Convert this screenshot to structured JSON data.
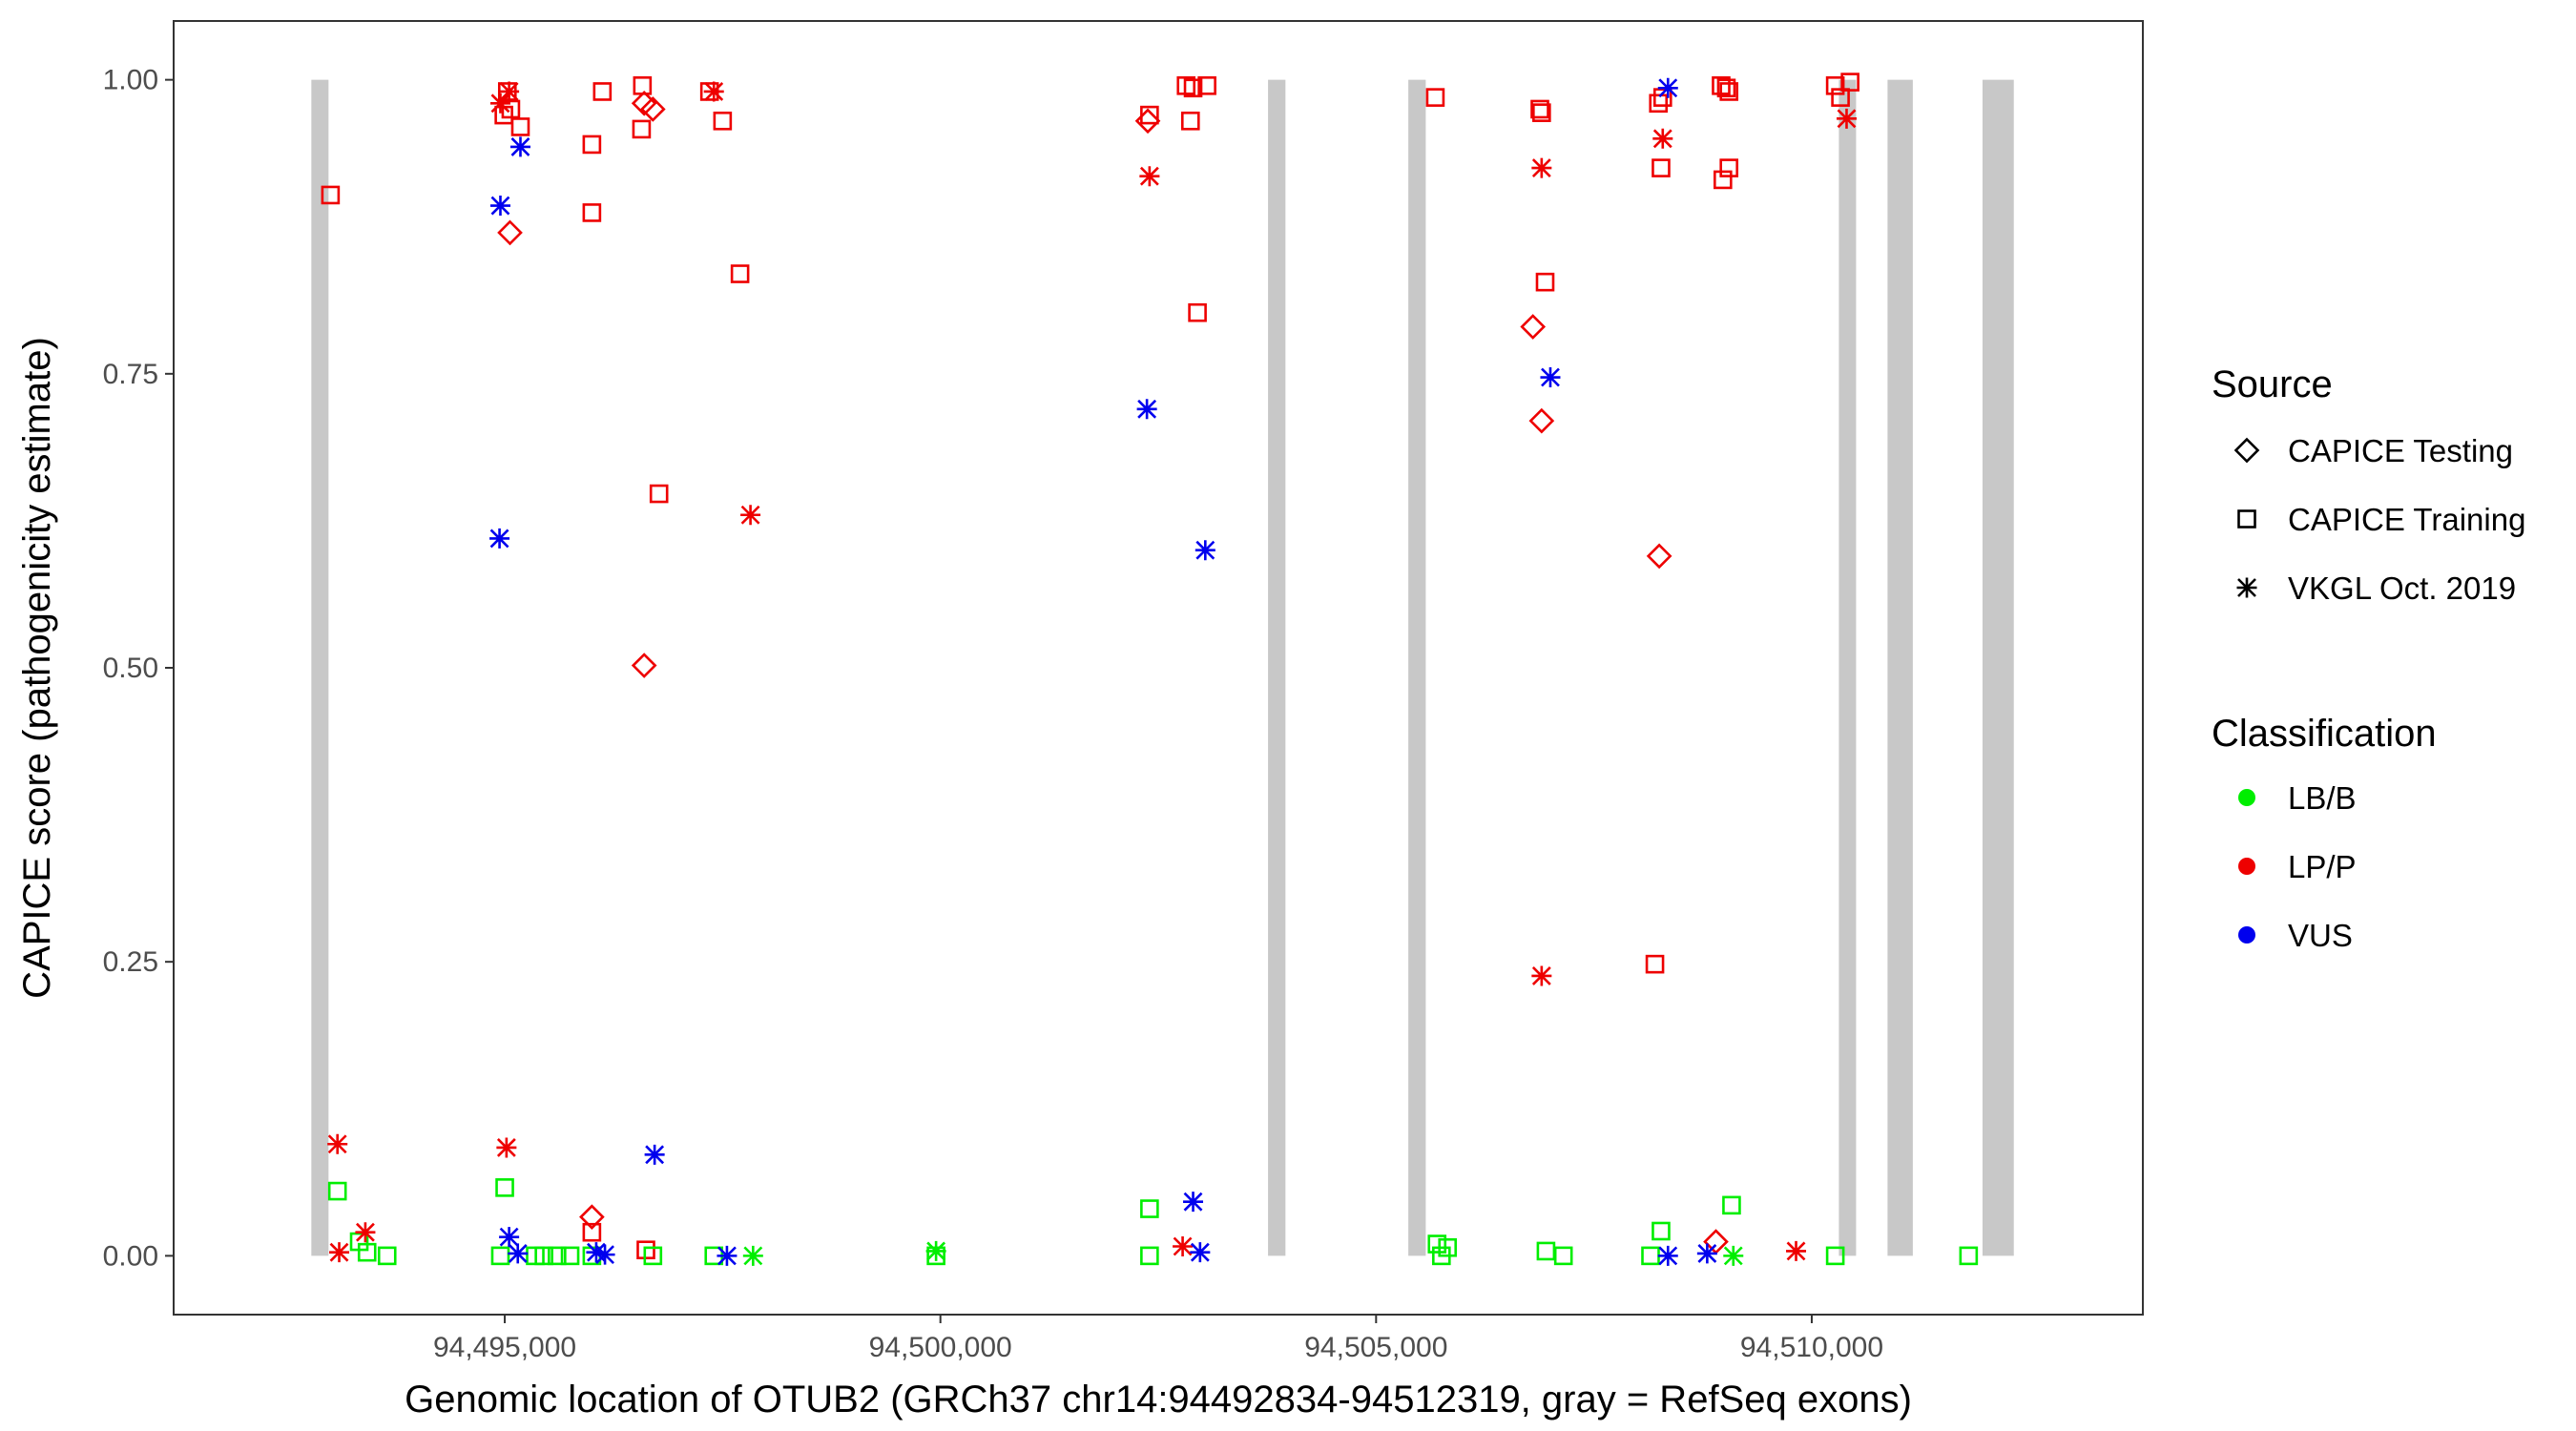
{
  "chart_data": {
    "type": "scatter",
    "title": "",
    "xlabel": "Genomic location of OTUB2 (GRCh37 chr14:94492834-94512319, gray = RefSeq exons)",
    "ylabel": "CAPICE score (pathogenicity estimate)",
    "xlim": [
      94491200,
      94513800
    ],
    "ylim": [
      -0.05,
      1.05
    ],
    "x_ticks": [
      94495000,
      94500000,
      94505000,
      94510000
    ],
    "x_tick_labels": [
      "94,495,000",
      "94,500,000",
      "94,505,000",
      "94,510,000"
    ],
    "y_ticks": [
      0,
      0.25,
      0.5,
      0.75,
      1
    ],
    "y_tick_labels": [
      "0.00",
      "0.25",
      "0.50",
      "0.75",
      "1.00"
    ],
    "grid": false,
    "exons": [
      [
        94492834,
        94492924
      ],
      [
        94503760,
        94503960
      ],
      [
        94505370,
        94505570
      ],
      [
        94510320,
        94510500
      ],
      [
        94510870,
        94511160
      ],
      [
        94511960,
        94512319
      ]
    ],
    "legend": {
      "placement": "right",
      "source_title": "Source",
      "classification_title": "Classification",
      "source_items": [
        {
          "label": "CAPICE Testing",
          "shape": "diamond"
        },
        {
          "label": "CAPICE Training",
          "shape": "square"
        },
        {
          "label": "VKGL Oct. 2019",
          "shape": "asterisk"
        }
      ],
      "classification_items": [
        {
          "label": "LB/B",
          "color": "#00ee00"
        },
        {
          "label": "LP/P",
          "color": "#ee0000"
        },
        {
          "label": "VUS",
          "color": "#0000ee"
        }
      ]
    },
    "colors": {
      "LB/B": "#00ee00",
      "LP/P": "#ee0000",
      "VUS": "#0000ee",
      "exon": "#c8c8c8"
    },
    "series": [
      {
        "name": "CAPICE Testing",
        "shape": "diamond",
        "points": [
          {
            "x": 94495060,
            "y": 0.87,
            "c": "LP/P"
          },
          {
            "x": 94496700,
            "y": 0.975,
            "c": "LP/P"
          },
          {
            "x": 94496600,
            "y": 0.98,
            "c": "LP/P"
          },
          {
            "x": 94496600,
            "y": 0.502,
            "c": "LP/P"
          },
          {
            "x": 94496000,
            "y": 0.033,
            "c": "LP/P"
          },
          {
            "x": 94502380,
            "y": 0.965,
            "c": "LP/P"
          },
          {
            "x": 94506800,
            "y": 0.79,
            "c": "LP/P"
          },
          {
            "x": 94506900,
            "y": 0.71,
            "c": "LP/P"
          },
          {
            "x": 94508250,
            "y": 0.595,
            "c": "LP/P"
          },
          {
            "x": 94508900,
            "y": 0.012,
            "c": "LP/P"
          }
        ]
      },
      {
        "name": "CAPICE Training",
        "shape": "square",
        "points": [
          {
            "x": 94493000,
            "y": 0.902,
            "c": "LP/P"
          },
          {
            "x": 94494990,
            "y": 0.97,
            "c": "LP/P"
          },
          {
            "x": 94495030,
            "y": 0.99,
            "c": "LP/P"
          },
          {
            "x": 94495070,
            "y": 0.975,
            "c": "LP/P"
          },
          {
            "x": 94495180,
            "y": 0.96,
            "c": "LP/P"
          },
          {
            "x": 94496000,
            "y": 0.945,
            "c": "LP/P"
          },
          {
            "x": 94496000,
            "y": 0.887,
            "c": "LP/P"
          },
          {
            "x": 94496120,
            "y": 0.99,
            "c": "LP/P"
          },
          {
            "x": 94496580,
            "y": 0.995,
            "c": "LP/P"
          },
          {
            "x": 94496570,
            "y": 0.958,
            "c": "LP/P"
          },
          {
            "x": 94496770,
            "y": 0.648,
            "c": "LP/P"
          },
          {
            "x": 94497350,
            "y": 0.99,
            "c": "LP/P"
          },
          {
            "x": 94497500,
            "y": 0.965,
            "c": "LP/P"
          },
          {
            "x": 94497700,
            "y": 0.835,
            "c": "LP/P"
          },
          {
            "x": 94496000,
            "y": 0.02,
            "c": "LP/P"
          },
          {
            "x": 94496620,
            "y": 0.005,
            "c": "LP/P"
          },
          {
            "x": 94502400,
            "y": 0.97,
            "c": "LP/P"
          },
          {
            "x": 94502820,
            "y": 0.995,
            "c": "LP/P"
          },
          {
            "x": 94502900,
            "y": 0.993,
            "c": "LP/P"
          },
          {
            "x": 94502870,
            "y": 0.965,
            "c": "LP/P"
          },
          {
            "x": 94502950,
            "y": 0.802,
            "c": "LP/P"
          },
          {
            "x": 94503060,
            "y": 0.995,
            "c": "LP/P"
          },
          {
            "x": 94505680,
            "y": 0.985,
            "c": "LP/P"
          },
          {
            "x": 94506880,
            "y": 0.975,
            "c": "LP/P"
          },
          {
            "x": 94506900,
            "y": 0.972,
            "c": "LP/P"
          },
          {
            "x": 94506940,
            "y": 0.828,
            "c": "LP/P"
          },
          {
            "x": 94508240,
            "y": 0.98,
            "c": "LP/P"
          },
          {
            "x": 94508290,
            "y": 0.985,
            "c": "LP/P"
          },
          {
            "x": 94508270,
            "y": 0.925,
            "c": "LP/P"
          },
          {
            "x": 94508200,
            "y": 0.248,
            "c": "LP/P"
          },
          {
            "x": 94508960,
            "y": 0.995,
            "c": "LP/P"
          },
          {
            "x": 94509020,
            "y": 0.993,
            "c": "LP/P"
          },
          {
            "x": 94509050,
            "y": 0.99,
            "c": "LP/P"
          },
          {
            "x": 94509050,
            "y": 0.925,
            "c": "LP/P"
          },
          {
            "x": 94508980,
            "y": 0.915,
            "c": "LP/P"
          },
          {
            "x": 94510270,
            "y": 0.995,
            "c": "LP/P"
          },
          {
            "x": 94510330,
            "y": 0.985,
            "c": "LP/P"
          },
          {
            "x": 94510440,
            "y": 0.998,
            "c": "LP/P"
          },
          {
            "x": 94493080,
            "y": 0.055,
            "c": "LB/B"
          },
          {
            "x": 94493330,
            "y": 0.012,
            "c": "LB/B"
          },
          {
            "x": 94493420,
            "y": 0.003,
            "c": "LB/B"
          },
          {
            "x": 94493650,
            "y": 0.0,
            "c": "LB/B"
          },
          {
            "x": 94495000,
            "y": 0.058,
            "c": "LB/B"
          },
          {
            "x": 94494950,
            "y": 0.0,
            "c": "LB/B"
          },
          {
            "x": 94495350,
            "y": 0.0,
            "c": "LB/B"
          },
          {
            "x": 94495450,
            "y": 0.0,
            "c": "LB/B"
          },
          {
            "x": 94495600,
            "y": 0.0,
            "c": "LB/B"
          },
          {
            "x": 94495750,
            "y": 0.0,
            "c": "LB/B"
          },
          {
            "x": 94496000,
            "y": 0.0,
            "c": "LB/B"
          },
          {
            "x": 94496700,
            "y": 0.0,
            "c": "LB/B"
          },
          {
            "x": 94497400,
            "y": 0.0,
            "c": "LB/B"
          },
          {
            "x": 94499950,
            "y": 0.0,
            "c": "LB/B"
          },
          {
            "x": 94502400,
            "y": 0.04,
            "c": "LB/B"
          },
          {
            "x": 94502400,
            "y": 0.0,
            "c": "LB/B"
          },
          {
            "x": 94505700,
            "y": 0.01,
            "c": "LB/B"
          },
          {
            "x": 94505820,
            "y": 0.007,
            "c": "LB/B"
          },
          {
            "x": 94505750,
            "y": 0.0,
            "c": "LB/B"
          },
          {
            "x": 94506950,
            "y": 0.004,
            "c": "LB/B"
          },
          {
            "x": 94507150,
            "y": 0.0,
            "c": "LB/B"
          },
          {
            "x": 94508270,
            "y": 0.021,
            "c": "LB/B"
          },
          {
            "x": 94508150,
            "y": 0.0,
            "c": "LB/B"
          },
          {
            "x": 94509080,
            "y": 0.043,
            "c": "LB/B"
          },
          {
            "x": 94510270,
            "y": 0.0,
            "c": "LB/B"
          },
          {
            "x": 94511800,
            "y": 0.0,
            "c": "LB/B"
          }
        ]
      },
      {
        "name": "VKGL Oct. 2019",
        "shape": "asterisk",
        "points": [
          {
            "x": 94493080,
            "y": 0.095,
            "c": "LP/P"
          },
          {
            "x": 94493100,
            "y": 0.003,
            "c": "LP/P"
          },
          {
            "x": 94493400,
            "y": 0.02,
            "c": "LP/P"
          },
          {
            "x": 94494950,
            "y": 0.98,
            "c": "LP/P"
          },
          {
            "x": 94495050,
            "y": 0.99,
            "c": "LP/P"
          },
          {
            "x": 94495020,
            "y": 0.092,
            "c": "LP/P"
          },
          {
            "x": 94497400,
            "y": 0.99,
            "c": "LP/P"
          },
          {
            "x": 94497820,
            "y": 0.63,
            "c": "LP/P"
          },
          {
            "x": 94502400,
            "y": 0.918,
            "c": "LP/P"
          },
          {
            "x": 94502780,
            "y": 0.008,
            "c": "LP/P"
          },
          {
            "x": 94506900,
            "y": 0.925,
            "c": "LP/P"
          },
          {
            "x": 94506900,
            "y": 0.238,
            "c": "LP/P"
          },
          {
            "x": 94508290,
            "y": 0.95,
            "c": "LP/P"
          },
          {
            "x": 94509820,
            "y": 0.004,
            "c": "LP/P"
          },
          {
            "x": 94510400,
            "y": 0.967,
            "c": "LP/P"
          },
          {
            "x": 94494950,
            "y": 0.893,
            "c": "VUS"
          },
          {
            "x": 94495180,
            "y": 0.943,
            "c": "VUS"
          },
          {
            "x": 94494940,
            "y": 0.61,
            "c": "VUS"
          },
          {
            "x": 94495050,
            "y": 0.016,
            "c": "VUS"
          },
          {
            "x": 94495150,
            "y": 0.002,
            "c": "VUS"
          },
          {
            "x": 94496050,
            "y": 0.003,
            "c": "VUS"
          },
          {
            "x": 94496150,
            "y": 0.001,
            "c": "VUS"
          },
          {
            "x": 94496720,
            "y": 0.086,
            "c": "VUS"
          },
          {
            "x": 94497550,
            "y": 0.0,
            "c": "VUS"
          },
          {
            "x": 94502370,
            "y": 0.72,
            "c": "VUS"
          },
          {
            "x": 94502900,
            "y": 0.046,
            "c": "VUS"
          },
          {
            "x": 94503040,
            "y": 0.6,
            "c": "VUS"
          },
          {
            "x": 94502980,
            "y": 0.003,
            "c": "VUS"
          },
          {
            "x": 94507000,
            "y": 0.747,
            "c": "VUS"
          },
          {
            "x": 94508350,
            "y": 0.993,
            "c": "VUS"
          },
          {
            "x": 94508350,
            "y": 0.0,
            "c": "VUS"
          },
          {
            "x": 94508800,
            "y": 0.002,
            "c": "VUS"
          },
          {
            "x": 94499950,
            "y": 0.004,
            "c": "LB/B"
          },
          {
            "x": 94497850,
            "y": 0.0,
            "c": "LB/B"
          },
          {
            "x": 94509100,
            "y": 0.0,
            "c": "LB/B"
          }
        ]
      }
    ]
  }
}
